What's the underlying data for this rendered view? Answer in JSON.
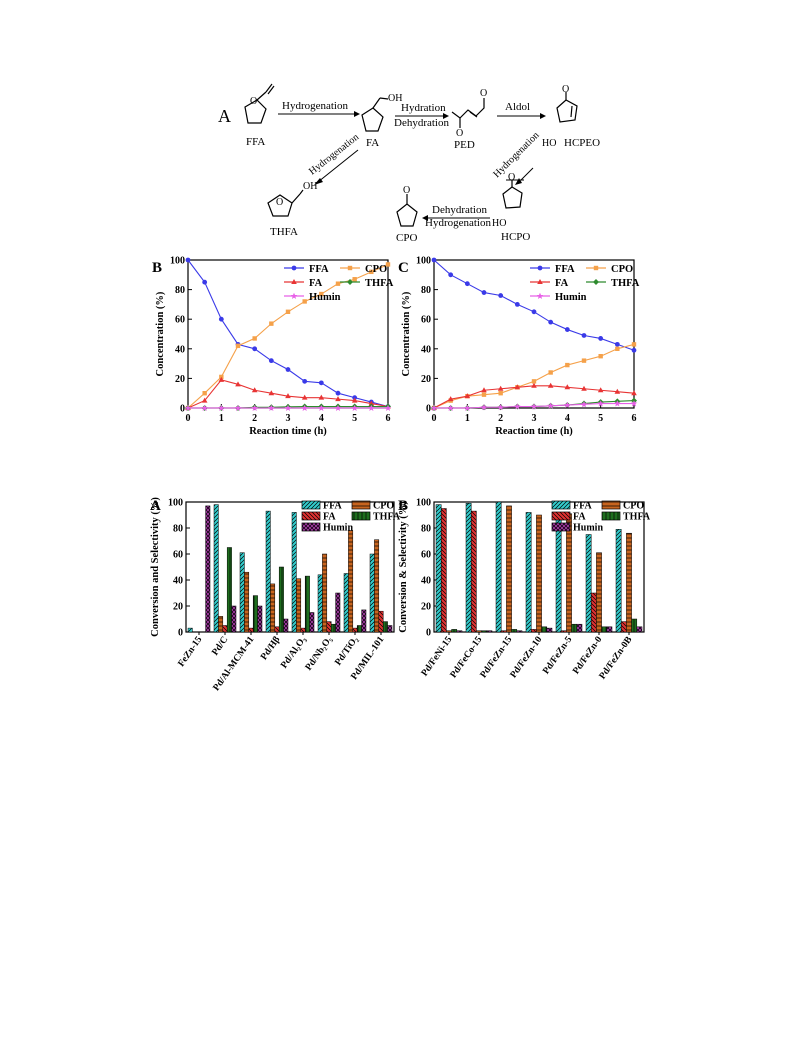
{
  "scheme": {
    "panel_label": "A",
    "compounds": {
      "ffa": "FFA",
      "fa": "FA",
      "ped": "PED",
      "hcpeo": "HCPEO",
      "hcpo": "HCPO",
      "cpo": "CPO",
      "thfa": "THFA",
      "ho": "HO",
      "oh": "OH",
      "o": "O"
    },
    "arrows": {
      "ffa_fa": "Hydrogenation",
      "fa_ped_top": "Hydration",
      "fa_ped_bottom": "Dehydration",
      "ped_hcpeo": "Aldol",
      "hcpeo_hcpo": "Hydrogenation",
      "hcpo_cpo_top": "Dehydration",
      "hcpo_cpo_bottom": "Hydrogenation",
      "fa_thfa": "Hydrogenation"
    }
  },
  "chart_data": [
    {
      "panel_label": "B",
      "type": "line",
      "xlabel": "Reaction time (h)",
      "ylabel": "Concentration (%)",
      "xlim": [
        0,
        6
      ],
      "ylim": [
        0,
        100
      ],
      "xticks": [
        0,
        1,
        2,
        3,
        4,
        5,
        6
      ],
      "yticks": [
        0,
        20,
        40,
        60,
        80,
        100
      ],
      "x": [
        0,
        0.5,
        1,
        1.5,
        2,
        2.5,
        3,
        3.5,
        4,
        4.5,
        5,
        5.5,
        6
      ],
      "legend_columns": [
        [
          "FFA",
          "FA",
          "Humin"
        ],
        [
          "CPO",
          "THFA"
        ]
      ],
      "series": [
        {
          "name": "FFA",
          "color": "#3a3ae8",
          "marker": "circle",
          "values": [
            100,
            85,
            60,
            43,
            40,
            32,
            26,
            18,
            17,
            10,
            7,
            4,
            1
          ]
        },
        {
          "name": "CPO",
          "color": "#f5a14a",
          "marker": "square",
          "values": [
            0,
            10,
            21,
            42,
            47,
            57,
            65,
            72,
            77,
            84,
            87,
            92,
            97
          ]
        },
        {
          "name": "FA",
          "color": "#e83434",
          "marker": "triangle",
          "values": [
            0,
            5,
            19,
            16,
            12,
            10,
            8,
            7,
            7,
            6,
            5,
            3,
            1
          ]
        },
        {
          "name": "THFA",
          "color": "#2e8b2e",
          "marker": "diamond",
          "values": [
            0,
            0,
            0,
            0,
            0.5,
            0.5,
            0.8,
            1,
            1,
            1,
            1,
            1,
            1
          ]
        },
        {
          "name": "Humin",
          "color": "#e860e8",
          "marker": "star",
          "values": [
            0,
            0,
            0,
            0,
            0,
            0,
            0,
            0,
            0,
            0,
            0,
            0,
            0
          ]
        }
      ]
    },
    {
      "panel_label": "C",
      "type": "line",
      "xlabel": "Reaction time (h)",
      "ylabel": "Concentration (%)",
      "xlim": [
        0,
        6
      ],
      "ylim": [
        0,
        100
      ],
      "xticks": [
        0,
        1,
        2,
        3,
        4,
        5,
        6
      ],
      "yticks": [
        0,
        20,
        40,
        60,
        80,
        100
      ],
      "x": [
        0,
        0.5,
        1,
        1.5,
        2,
        2.5,
        3,
        3.5,
        4,
        4.5,
        5,
        5.5,
        6
      ],
      "legend_columns": [
        [
          "FFA",
          "FA",
          "Humin"
        ],
        [
          "CPO",
          "THFA"
        ]
      ],
      "series": [
        {
          "name": "FFA",
          "color": "#3a3ae8",
          "marker": "circle",
          "values": [
            100,
            90,
            84,
            78,
            76,
            70,
            65,
            58,
            53,
            49,
            47,
            43,
            39
          ]
        },
        {
          "name": "CPO",
          "color": "#f5a14a",
          "marker": "square",
          "values": [
            0,
            5,
            8,
            9,
            10,
            14,
            18,
            24,
            29,
            32,
            35,
            40,
            43
          ]
        },
        {
          "name": "FA",
          "color": "#e83434",
          "marker": "triangle",
          "values": [
            0,
            6,
            8,
            12,
            13,
            14,
            15,
            15,
            14,
            13,
            12,
            11,
            10
          ]
        },
        {
          "name": "THFA",
          "color": "#2e8b2e",
          "marker": "diamond",
          "values": [
            0,
            0,
            0,
            0.5,
            0.5,
            1,
            1,
            1.5,
            2,
            3,
            4,
            4.5,
            5
          ]
        },
        {
          "name": "Humin",
          "color": "#e860e8",
          "marker": "star",
          "values": [
            0,
            0,
            0,
            0.5,
            0.5,
            1,
            1,
            1.5,
            2,
            2.5,
            3,
            3,
            3
          ]
        }
      ]
    },
    {
      "panel_label": "A",
      "type": "bar",
      "xlabel": "",
      "ylabel": "Conversion and Selectivity (%)",
      "ylim": [
        0,
        100
      ],
      "yticks": [
        0,
        20,
        40,
        60,
        80,
        100
      ],
      "categories": [
        "FeZn-15",
        "Pd/C",
        "Pd/Al-MCM-41",
        "Pd/Hβ",
        "Pd/Al₂O₃",
        "Pd/Nb₂O₅",
        "Pd/TiO₂",
        "Pd/MIL-101"
      ],
      "legend_columns": [
        [
          "FFA",
          "FA",
          "Humin"
        ],
        [
          "CPO",
          "THFA"
        ]
      ],
      "series": [
        {
          "name": "FFA",
          "color": "#33cccc",
          "pattern": "diag",
          "values": [
            3,
            98,
            61,
            93,
            92,
            44,
            45,
            60
          ]
        },
        {
          "name": "CPO",
          "color": "#c8641e",
          "pattern": "horiz",
          "values": [
            0,
            12,
            46,
            37,
            41,
            60,
            78,
            71
          ]
        },
        {
          "name": "FA",
          "color": "#e03232",
          "pattern": "diag2",
          "values": [
            0,
            5,
            3,
            4,
            3,
            8,
            3,
            16
          ]
        },
        {
          "name": "THFA",
          "color": "#1e6e1e",
          "pattern": "vert",
          "values": [
            0,
            65,
            28,
            50,
            43,
            6,
            5,
            8
          ]
        },
        {
          "name": "Humin",
          "color": "#a83aa8",
          "pattern": "cross",
          "values": [
            97,
            20,
            20,
            10,
            15,
            30,
            17,
            5
          ]
        }
      ]
    },
    {
      "panel_label": "B",
      "type": "bar",
      "xlabel": "",
      "ylabel": "Conversion & Selectivity (%)",
      "ylim": [
        0,
        100
      ],
      "yticks": [
        0,
        20,
        40,
        60,
        80,
        100
      ],
      "categories": [
        "Pd/FeNi-15",
        "Pd/FeCo-15",
        "Pd/FeZn-15",
        "Pd/FeZn-10",
        "Pd/FeZn-5",
        "Pd/FeZn-0",
        "Pd/FeZn-0B"
      ],
      "legend_columns": [
        [
          "FFA",
          "FA",
          "Humin"
        ],
        [
          "CPO",
          "THFA"
        ]
      ],
      "series": [
        {
          "name": "FFA",
          "color": "#33cccc",
          "pattern": "diag",
          "values": [
            98,
            99,
            100,
            92,
            92,
            75,
            79
          ]
        },
        {
          "name": "FA",
          "color": "#e03232",
          "pattern": "diag2",
          "values": [
            95,
            93,
            1,
            2,
            1,
            30,
            8
          ]
        },
        {
          "name": "CPO",
          "color": "#c8641e",
          "pattern": "horiz",
          "values": [
            1,
            1,
            97,
            90,
            91,
            61,
            76
          ]
        },
        {
          "name": "THFA",
          "color": "#1e6e1e",
          "pattern": "vert",
          "values": [
            2,
            1,
            2,
            4,
            6,
            4,
            10
          ]
        },
        {
          "name": "Humin",
          "color": "#a83aa8",
          "pattern": "cross",
          "values": [
            1,
            1,
            1,
            3,
            6,
            4,
            4
          ]
        }
      ]
    }
  ]
}
